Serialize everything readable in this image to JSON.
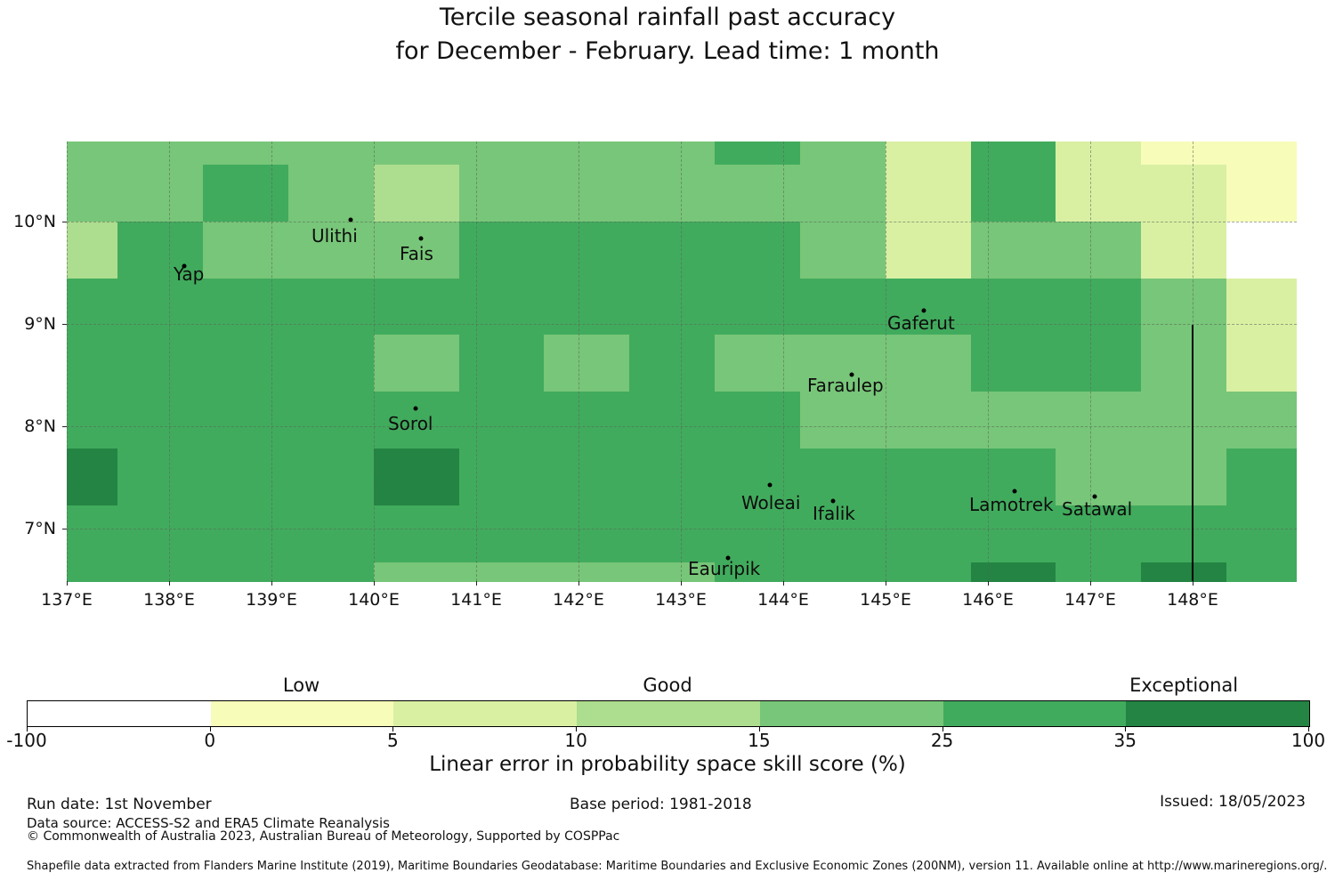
{
  "title": {
    "line1": "Tercile seasonal rainfall past accuracy",
    "line2": "for December - February. Lead time: 1 month"
  },
  "chart_data": {
    "type": "heatmap",
    "title": "Tercile seasonal rainfall past accuracy for December - February. Lead time: 1 month",
    "x_axis": {
      "label_format": "degrees east",
      "ticks": [
        137,
        138,
        139,
        140,
        141,
        142,
        143,
        144,
        145,
        146,
        147,
        148
      ],
      "tick_labels": [
        "137°E",
        "138°E",
        "139°E",
        "140°E",
        "141°E",
        "142°E",
        "143°E",
        "144°E",
        "145°E",
        "146°E",
        "147°E",
        "148°E"
      ]
    },
    "y_axis": {
      "label_format": "degrees north",
      "ticks": [
        10,
        9,
        8,
        7
      ],
      "tick_labels": [
        "10°N",
        "9°N",
        "8°N",
        "7°N"
      ]
    },
    "lon_cell_edges": [
      137.0,
      137.497,
      138.331,
      139.164,
      139.997,
      140.831,
      141.664,
      142.497,
      143.331,
      144.164,
      144.997,
      145.831,
      146.664,
      147.497,
      148.331,
      149.017
    ],
    "lat_cell_edges": [
      10.779,
      10.554,
      10.0,
      9.446,
      8.893,
      8.339,
      7.785,
      7.231,
      6.677,
      6.491
    ],
    "bins": {
      "W": {
        "range": [
          -100,
          0
        ],
        "color": "#ffffff"
      },
      "F": {
        "range": [
          0,
          5
        ],
        "color": "#f7fcb9"
      },
      "E": {
        "range": [
          5,
          10
        ],
        "color": "#d9f0a3"
      },
      "D": {
        "range": [
          10,
          15
        ],
        "color": "#addd8e"
      },
      "C": {
        "range": [
          15,
          25
        ],
        "color": "#78c679"
      },
      "B": {
        "range": [
          25,
          35
        ],
        "color": "#41ab5d"
      },
      "A": {
        "range": [
          35,
          100
        ],
        "color": "#238443"
      }
    },
    "cells": [
      "CCCCCCCCBCEBEFF",
      "CCBCDCCCCCEBEEF",
      "DBCCCBBBBCECCEW",
      "BBBBBBBBBBBBBCE",
      "BBBBCBCBCCCBBCE",
      "BBBBBBBBBCCCCCC",
      "ABBBABBBBBBBCCB",
      "BBBBBBBBBBBBBBB",
      "BBBBCCCCBBBABAB"
    ],
    "boundary_line": {
      "lon": 148.0,
      "lat_from": 8.99,
      "lat_to": 6.491
    },
    "islands": [
      {
        "name": "Ulithi",
        "marker_lon": 139.774,
        "marker_lat": 10.016,
        "label_lon": 139.391,
        "label_lat": 9.964
      },
      {
        "name": "Fais",
        "marker_lon": 140.461,
        "marker_lat": 9.833,
        "label_lon": 140.252,
        "label_lat": 9.79
      },
      {
        "name": "Yap",
        "marker_lon": 138.148,
        "marker_lat": 9.564,
        "label_lon": 138.043,
        "label_lat": 9.59
      },
      {
        "name": "Gaferut",
        "marker_lon": 145.374,
        "marker_lat": 9.13,
        "label_lon": 145.017,
        "label_lat": 9.113
      },
      {
        "name": "Faraulep",
        "marker_lon": 144.67,
        "marker_lat": 8.505,
        "label_lon": 144.235,
        "label_lat": 8.505
      },
      {
        "name": "Sorol",
        "marker_lon": 140.409,
        "marker_lat": 8.175,
        "label_lon": 140.139,
        "label_lat": 8.132
      },
      {
        "name": "Woleai",
        "marker_lon": 143.87,
        "marker_lat": 7.429,
        "label_lon": 143.591,
        "label_lat": 7.359
      },
      {
        "name": "Ifalik",
        "marker_lon": 144.487,
        "marker_lat": 7.273,
        "label_lon": 144.287,
        "label_lat": 7.255
      },
      {
        "name": "Lamotrek",
        "marker_lon": 146.261,
        "marker_lat": 7.368,
        "label_lon": 145.817,
        "label_lat": 7.342
      },
      {
        "name": "Satawal",
        "marker_lon": 147.043,
        "marker_lat": 7.316,
        "label_lon": 146.722,
        "label_lat": 7.299
      },
      {
        "name": "Eauripik",
        "marker_lon": 143.461,
        "marker_lat": 6.717,
        "label_lon": 143.07,
        "label_lat": 6.717
      }
    ]
  },
  "colorbar": {
    "segments": [
      {
        "label": "-100–0",
        "color": "#ffffff"
      },
      {
        "label": "0–5",
        "color": "#f7fcb9"
      },
      {
        "label": "5–10",
        "color": "#d9f0a3"
      },
      {
        "label": "10–15",
        "color": "#addd8e"
      },
      {
        "label": "15–25",
        "color": "#78c679"
      },
      {
        "label": "25–35",
        "color": "#41ab5d"
      },
      {
        "label": "35–100",
        "color": "#238443"
      }
    ],
    "tick_labels": [
      "-100",
      "0",
      "5",
      "10",
      "15",
      "25",
      "35",
      "100"
    ],
    "category_labels": [
      {
        "text": "Low",
        "boundary_pos": 1.5
      },
      {
        "text": "Good",
        "boundary_pos": 3.5
      },
      {
        "text": "Exceptional",
        "boundary_pos": 6.32
      }
    ],
    "caption": "Linear error in probability space skill score (%)"
  },
  "footer": {
    "run_date": "Run date: 1st November",
    "base_period": "Base period: 1981-2018",
    "issued": "Issued: 18/05/2023",
    "data_source": "Data source: ACCESS-S2 and ERA5 Climate Reanalysis",
    "copyright": "© Commonwealth of Australia 2023, Australian Bureau of Meteorology, Supported by COSPPac",
    "shapefile_note": "Shapefile data extracted from Flanders Marine Institute (2019), Maritime Boundaries Geodatabase: Maritime Boundaries and Exclusive Economic Zones (200NM), version 11. Available online at http://www.marineregions.org/."
  }
}
